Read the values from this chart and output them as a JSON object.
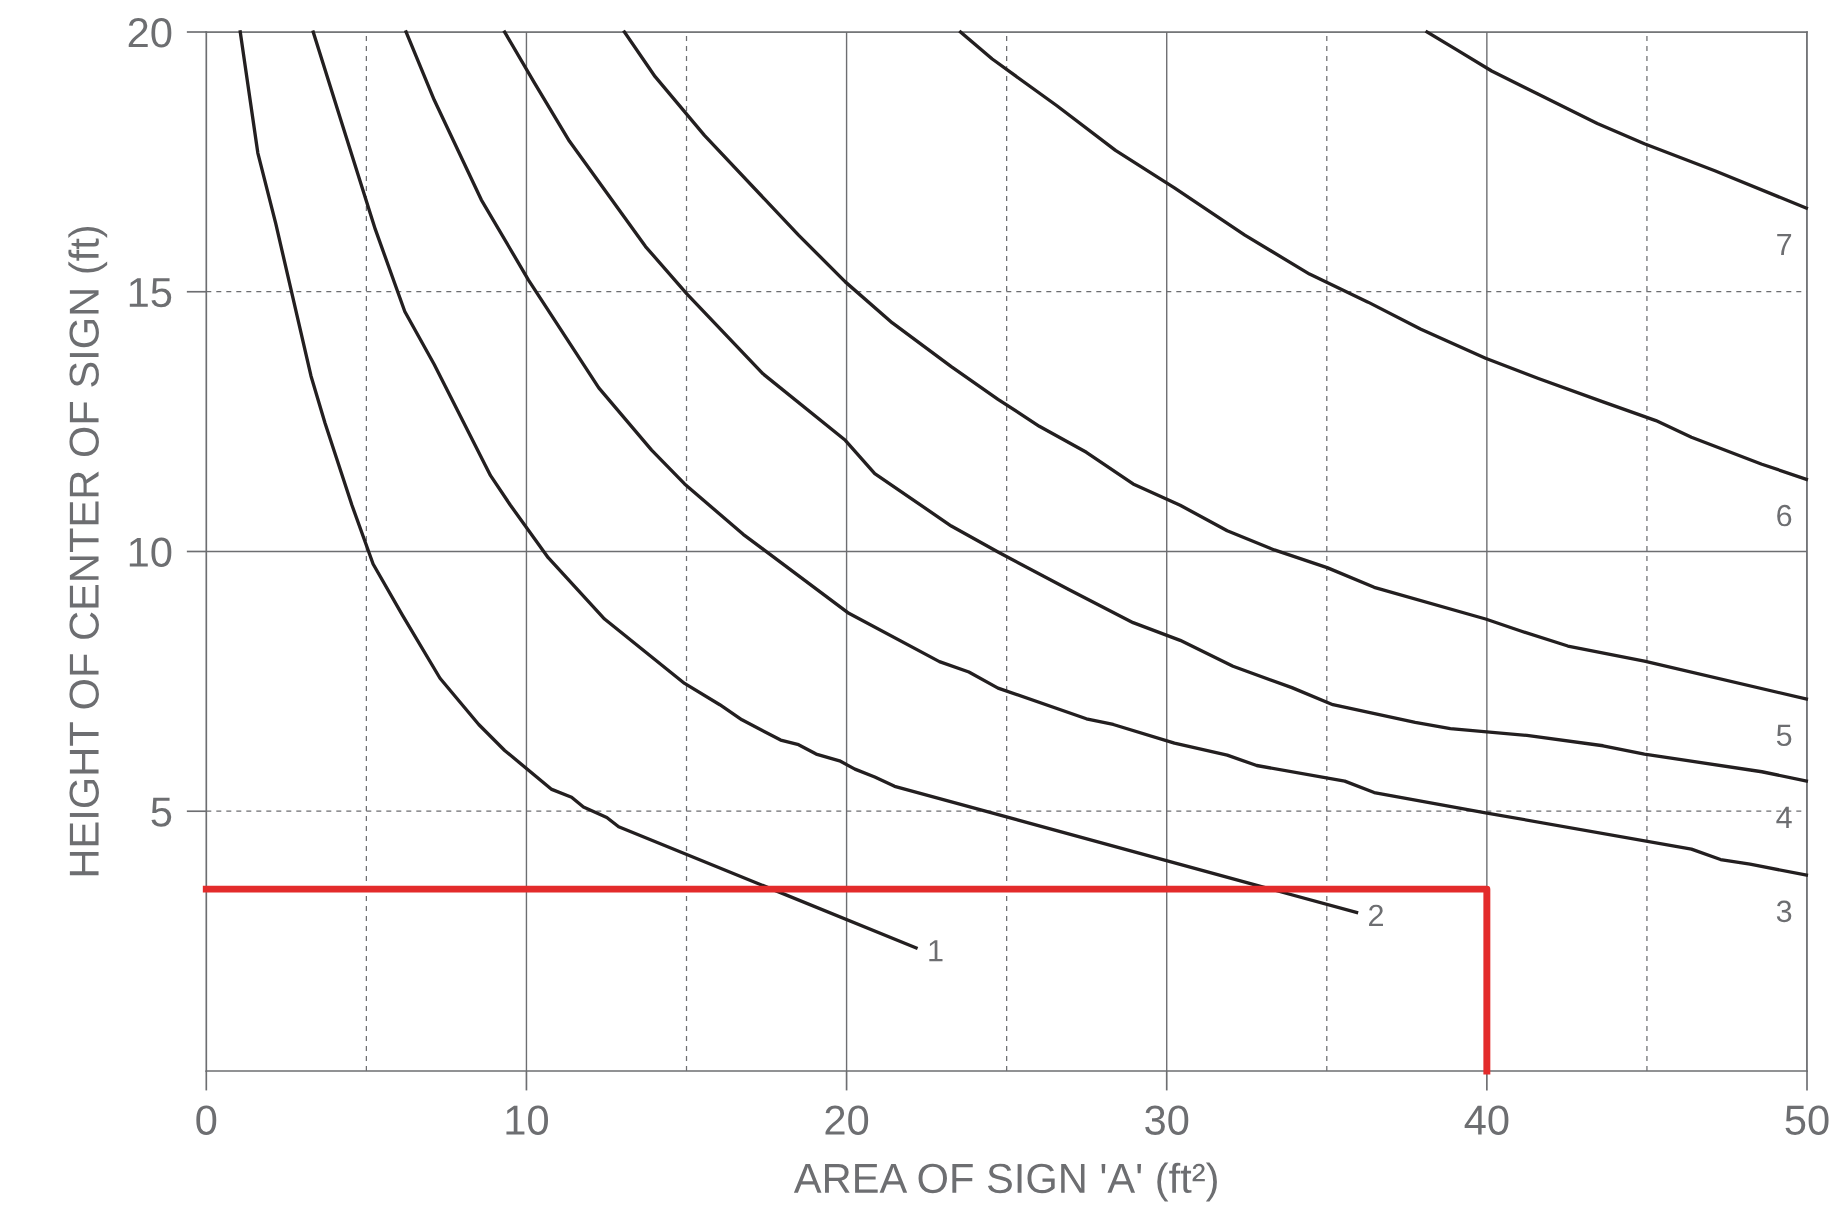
{
  "chart_data": {
    "type": "line",
    "xlabel": "AREA OF SIGN 'A' (ft²)",
    "ylabel": "HEIGHT OF CENTER OF SIGN (ft)",
    "xlim": [
      0,
      50
    ],
    "ylim": [
      0,
      20
    ],
    "xticks": [
      0,
      10,
      20,
      30,
      40,
      50
    ],
    "yticks": [
      5,
      10,
      15,
      20
    ],
    "grid": true,
    "marker": "none",
    "line_style": "solid",
    "series": [
      {
        "name": "1",
        "color": "#231f20",
        "x": [
          1.06,
          1.61,
          2.17,
          3.27,
          3.71,
          4.55,
          5.21,
          6.13,
          7.3,
          8.51,
          9.32,
          10.79,
          11.41,
          11.78,
          12.51,
          12.88,
          22.17
        ],
        "values": [
          20.0,
          17.67,
          16.31,
          13.38,
          12.47,
          10.89,
          9.76,
          8.77,
          7.56,
          6.67,
          6.17,
          5.42,
          5.27,
          5.08,
          4.88,
          4.7,
          2.37
        ]
      },
      {
        "name": "2",
        "color": "#231f20",
        "x": [
          3.34,
          4.18,
          5.28,
          6.2,
          7.12,
          8.88,
          9.5,
          10.68,
          12.44,
          14.94,
          16.04,
          16.73,
          17.94,
          18.5,
          19.05,
          19.78,
          20.26,
          20.88,
          21.5,
          35.93
        ],
        "values": [
          20.0,
          18.35,
          16.2,
          14.62,
          13.6,
          11.46,
          10.89,
          9.88,
          8.7,
          7.46,
          7.05,
          6.76,
          6.37,
          6.28,
          6.1,
          5.97,
          5.81,
          5.66,
          5.48,
          3.05
        ]
      },
      {
        "name": "3",
        "color": "#231f20",
        "x": [
          6.24,
          7.12,
          8.59,
          10.06,
          12.26,
          13.91,
          14.94,
          16.77,
          20.07,
          22.9,
          23.82,
          24.73,
          27.49,
          28.33,
          30.24,
          31.89,
          32.81,
          35.56,
          36.48,
          39.96,
          46.39,
          47.3,
          48.22,
          49.98
        ],
        "values": [
          20.0,
          18.69,
          16.77,
          15.23,
          13.15,
          11.95,
          11.3,
          10.33,
          8.81,
          7.88,
          7.68,
          7.37,
          6.78,
          6.67,
          6.31,
          6.08,
          5.88,
          5.58,
          5.36,
          4.97,
          4.27,
          4.07,
          3.98,
          3.77
        ]
      },
      {
        "name": "4",
        "color": "#231f20",
        "x": [
          9.32,
          10.24,
          11.34,
          13.72,
          15.01,
          17.39,
          19.96,
          20.88,
          23.27,
          24.73,
          26.94,
          28.95,
          30.42,
          32.07,
          33.91,
          35.19,
          37.76,
          38.86,
          41.25,
          43.63,
          44.92,
          48.59,
          49.98
        ],
        "values": [
          20.0,
          19.03,
          17.9,
          15.87,
          14.96,
          13.42,
          12.14,
          11.5,
          10.49,
          9.99,
          9.27,
          8.63,
          8.29,
          7.79,
          7.38,
          7.05,
          6.71,
          6.59,
          6.46,
          6.26,
          6.1,
          5.76,
          5.58
        ]
      },
      {
        "name": "5",
        "color": "#231f20",
        "x": [
          13.06,
          14.02,
          15.56,
          18.5,
          19.96,
          21.43,
          23.27,
          24.73,
          26.02,
          27.49,
          28.95,
          30.42,
          31.89,
          33.36,
          35.01,
          36.48,
          39.96,
          41.06,
          42.53,
          44.92,
          49.98
        ],
        "values": [
          20.0,
          19.14,
          18.01,
          16.09,
          15.19,
          14.4,
          13.56,
          12.93,
          12.41,
          11.91,
          11.3,
          10.89,
          10.4,
          10.03,
          9.69,
          9.31,
          8.7,
          8.47,
          8.18,
          7.89,
          7.16
        ]
      },
      {
        "name": "6",
        "color": "#231f20",
        "x": [
          23.56,
          24.55,
          26.57,
          28.4,
          30.24,
          32.44,
          34.46,
          36.29,
          37.94,
          39.96,
          41.61,
          43.63,
          45.28,
          46.39,
          48.59,
          49.98
        ],
        "values": [
          20.0,
          19.48,
          18.58,
          17.72,
          17.0,
          16.09,
          15.34,
          14.8,
          14.28,
          13.72,
          13.33,
          12.88,
          12.52,
          12.2,
          11.68,
          11.39
        ]
      },
      {
        "name": "7",
        "color": "#231f20",
        "x": [
          38.13,
          39.05,
          40.15,
          41.61,
          43.45,
          44.92,
          47.12,
          49.98
        ],
        "values": [
          20.0,
          19.66,
          19.25,
          18.8,
          18.24,
          17.85,
          17.33,
          16.61
        ]
      },
      {
        "color": "#e32b2b",
        "x": [
          0,
          40,
          40
        ],
        "values": [
          3.5,
          3.5,
          0
        ]
      }
    ]
  }
}
